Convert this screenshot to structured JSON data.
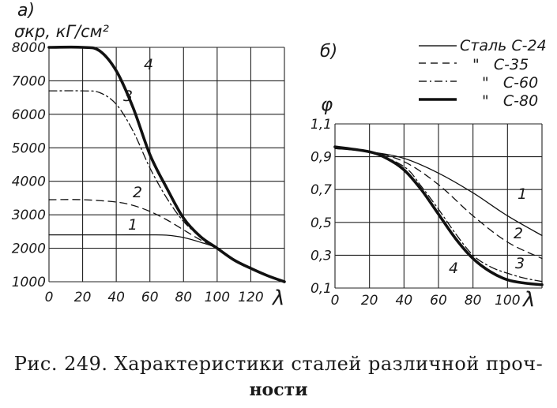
{
  "caption": {
    "line1": "Рис. 249. Характеристики сталей различной проч-",
    "line2": "ности"
  },
  "legend": {
    "entries": [
      {
        "label": "Сталь С-24",
        "style": "solid"
      },
      {
        "label": "\"   С-35",
        "style": "dashed"
      },
      {
        "label": "\"   С-60",
        "style": "dashdot"
      },
      {
        "label": "\"   С-80",
        "style": "bold"
      }
    ]
  },
  "chart_data": [
    {
      "type": "line",
      "panel_label": "а)",
      "ylabel": "σкр, кГ/см²",
      "xlabel": "λ",
      "xlim": [
        0,
        140
      ],
      "ylim": [
        1000,
        8000
      ],
      "xticks": [
        "0",
        "20",
        "40",
        "60",
        "80",
        "100",
        "120"
      ],
      "yticks": [
        "1000",
        "2000",
        "3000",
        "4000",
        "5000",
        "6000",
        "7000",
        "8000"
      ],
      "grid": true,
      "series": [
        {
          "name": "1",
          "style": "solid",
          "x": [
            0,
            20,
            40,
            60,
            70,
            80,
            90,
            100,
            110,
            120,
            130,
            140
          ],
          "y": [
            2400,
            2400,
            2400,
            2400,
            2390,
            2320,
            2180,
            2000,
            1650,
            1400,
            1180,
            1000
          ]
        },
        {
          "name": "2",
          "style": "dashed",
          "x": [
            0,
            20,
            40,
            50,
            60,
            70,
            80,
            90,
            100,
            110,
            120,
            130,
            140
          ],
          "y": [
            3450,
            3450,
            3380,
            3280,
            3100,
            2850,
            2550,
            2250,
            2000,
            1650,
            1400,
            1180,
            1000
          ]
        },
        {
          "name": "3",
          "style": "dashdot",
          "x": [
            0,
            20,
            30,
            40,
            50,
            60,
            70,
            80,
            90,
            100,
            110,
            120,
            130,
            140
          ],
          "y": [
            6700,
            6700,
            6650,
            6300,
            5500,
            4400,
            3500,
            2800,
            2350,
            2000,
            1650,
            1400,
            1180,
            1000
          ]
        },
        {
          "name": "4",
          "style": "bold",
          "x": [
            0,
            20,
            30,
            40,
            50,
            60,
            70,
            80,
            90,
            100,
            110,
            120,
            130,
            140
          ],
          "y": [
            8000,
            8000,
            7900,
            7300,
            6200,
            4800,
            3800,
            2900,
            2350,
            2000,
            1650,
            1400,
            1180,
            1000
          ]
        }
      ]
    },
    {
      "type": "line",
      "panel_label": "б)",
      "ylabel": "φ",
      "xlabel": "λ",
      "xlim": [
        0,
        120
      ],
      "ylim": [
        0.1,
        1.1
      ],
      "xticks": [
        "0",
        "20",
        "40",
        "60",
        "80",
        "100"
      ],
      "yticks": [
        "0,1",
        "0,3",
        "0,5",
        "0,7",
        "0,9",
        "1,1"
      ],
      "grid": true,
      "series": [
        {
          "name": "1",
          "style": "solid",
          "x": [
            0,
            20,
            40,
            60,
            80,
            100,
            120
          ],
          "y": [
            0.95,
            0.93,
            0.89,
            0.8,
            0.68,
            0.54,
            0.42
          ]
        },
        {
          "name": "2",
          "style": "dashed",
          "x": [
            0,
            20,
            40,
            60,
            80,
            100,
            120
          ],
          "y": [
            0.95,
            0.93,
            0.87,
            0.73,
            0.54,
            0.38,
            0.28
          ]
        },
        {
          "name": "3",
          "style": "dashdot",
          "x": [
            0,
            20,
            40,
            50,
            60,
            70,
            80,
            90,
            100,
            110,
            120
          ],
          "y": [
            0.96,
            0.93,
            0.84,
            0.72,
            0.58,
            0.43,
            0.3,
            0.23,
            0.19,
            0.16,
            0.14
          ]
        },
        {
          "name": "4",
          "style": "bold",
          "x": [
            0,
            20,
            30,
            40,
            50,
            60,
            70,
            80,
            90,
            100,
            110,
            120
          ],
          "y": [
            0.96,
            0.93,
            0.89,
            0.82,
            0.7,
            0.55,
            0.4,
            0.28,
            0.2,
            0.15,
            0.13,
            0.12
          ]
        }
      ]
    }
  ]
}
